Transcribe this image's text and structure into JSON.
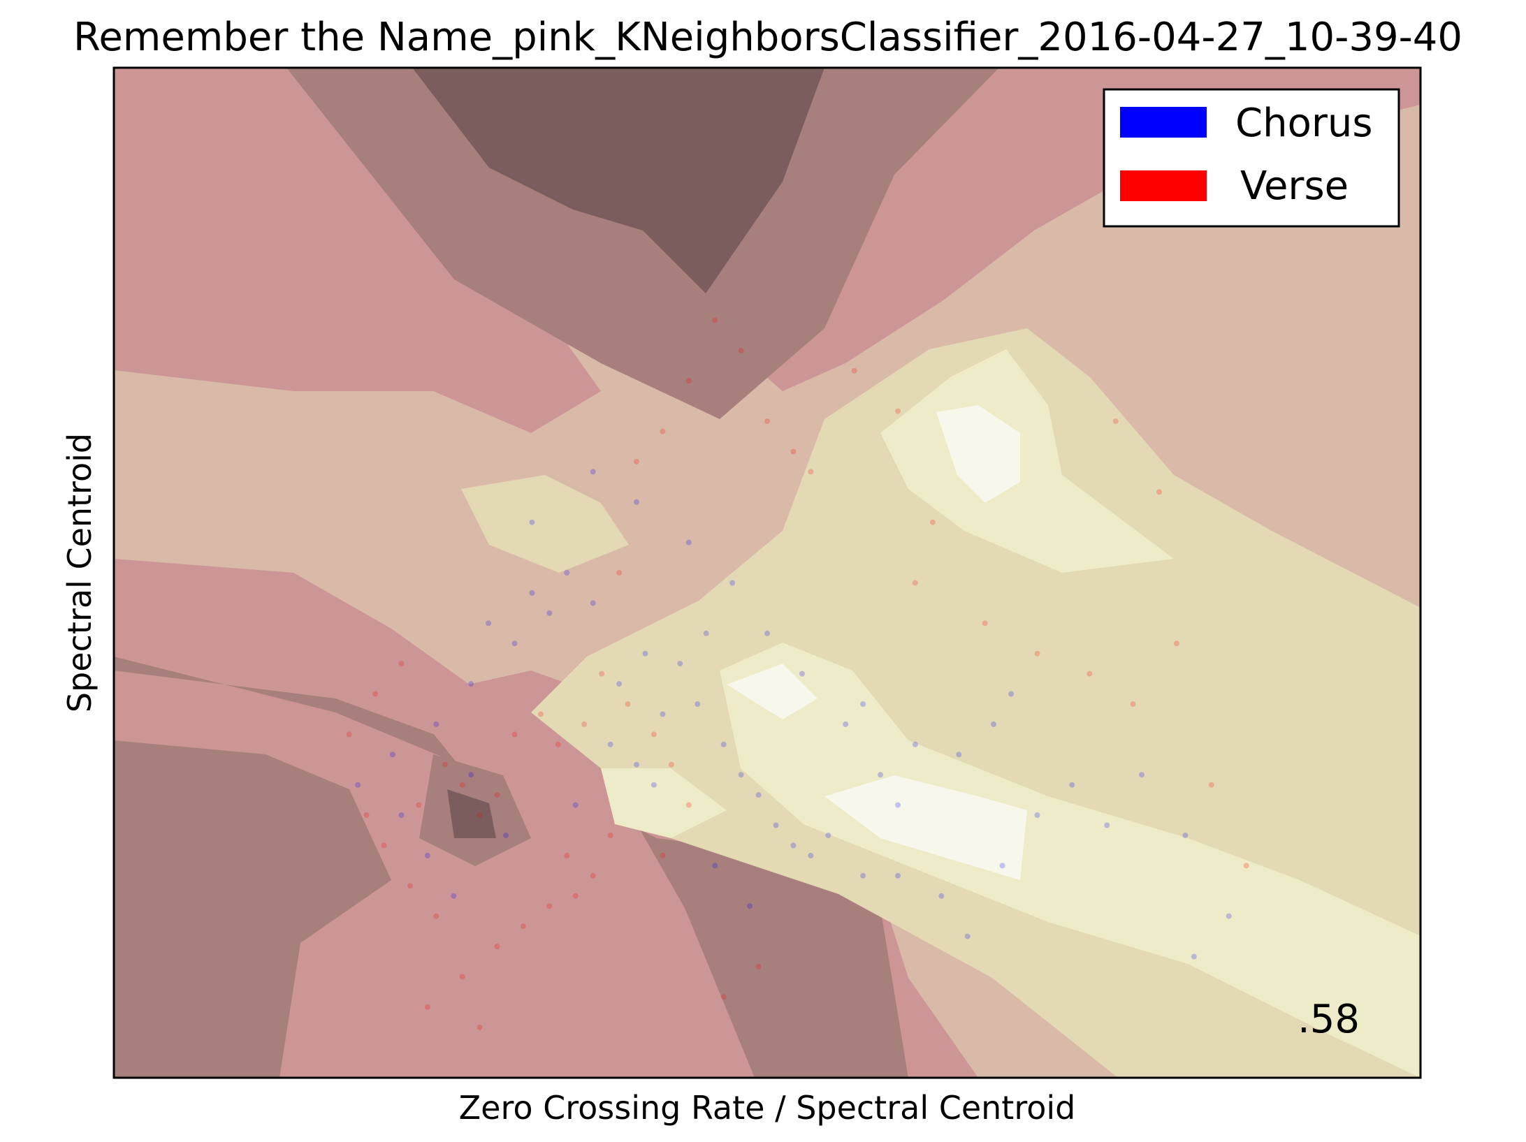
{
  "chart_data": {
    "type": "scatter",
    "title": "Remember the Name_pink_KNeighborsClassifier_2016-04-27_10-39-40",
    "xlabel": "Zero Crossing Rate / Spectral Centroid",
    "ylabel": "Spectral Centroid",
    "xticks": [],
    "yticks": [],
    "grid": false,
    "legend": {
      "placement": "top-right",
      "entries": [
        {
          "label": "Chorus",
          "color": "#0000ff"
        },
        {
          "label": "Verse",
          "color": "#ff0000"
        }
      ]
    },
    "score_label": ".58",
    "background": "decision-surface",
    "decision_surface_colors": [
      "#7b5d5d",
      "#a77f7d",
      "#cc9696",
      "#d9b9a8",
      "#e3dab5",
      "#eeebc8",
      "#f8f7ec"
    ],
    "series": [
      {
        "name": "Chorus",
        "color": "#0000ff",
        "points": [
          [
            0.43,
            0.45
          ],
          [
            0.46,
            0.43
          ],
          [
            0.48,
            0.48
          ],
          [
            0.5,
            0.46
          ],
          [
            0.52,
            0.5
          ],
          [
            0.55,
            0.47
          ],
          [
            0.58,
            0.39
          ],
          [
            0.61,
            0.42
          ],
          [
            0.63,
            0.36
          ],
          [
            0.65,
            0.41
          ],
          [
            0.67,
            0.37
          ],
          [
            0.68,
            0.44
          ],
          [
            0.7,
            0.33
          ],
          [
            0.72,
            0.3
          ],
          [
            0.74,
            0.28
          ],
          [
            0.76,
            0.25
          ],
          [
            0.78,
            0.23
          ],
          [
            0.8,
            0.22
          ],
          [
            0.82,
            0.24
          ],
          [
            0.86,
            0.2
          ],
          [
            0.9,
            0.2
          ],
          [
            0.95,
            0.18
          ],
          [
            1.02,
            0.21
          ],
          [
            1.06,
            0.26
          ],
          [
            1.1,
            0.29
          ],
          [
            1.14,
            0.25
          ],
          [
            1.18,
            0.3
          ],
          [
            1.23,
            0.24
          ],
          [
            1.28,
            0.16
          ],
          [
            1.24,
            0.12
          ],
          [
            0.98,
            0.14
          ],
          [
            1.01,
            0.35
          ],
          [
            1.03,
            0.38
          ],
          [
            0.92,
            0.33
          ],
          [
            0.88,
            0.3
          ],
          [
            0.86,
            0.37
          ],
          [
            0.6,
            0.31
          ],
          [
            0.62,
            0.29
          ],
          [
            0.57,
            0.33
          ],
          [
            0.53,
            0.27
          ],
          [
            0.45,
            0.24
          ],
          [
            0.41,
            0.3
          ],
          [
            0.39,
            0.18
          ],
          [
            0.36,
            0.22
          ],
          [
            0.33,
            0.26
          ],
          [
            0.37,
            0.35
          ],
          [
            0.41,
            0.39
          ],
          [
            0.48,
            0.55
          ],
          [
            0.55,
            0.6
          ],
          [
            0.6,
            0.57
          ],
          [
            0.66,
            0.53
          ],
          [
            0.71,
            0.49
          ],
          [
            0.75,
            0.44
          ],
          [
            0.79,
            0.4
          ],
          [
            0.84,
            0.35
          ],
          [
            0.9,
            0.27
          ],
          [
            0.97,
            0.32
          ],
          [
            0.32,
            0.32
          ],
          [
            0.28,
            0.29
          ],
          [
            0.69,
            0.21
          ],
          [
            0.73,
            0.17
          ]
        ]
      },
      {
        "name": "Verse",
        "color": "#ff0000",
        "points": [
          [
            0.35,
            0.27
          ],
          [
            0.38,
            0.31
          ],
          [
            0.4,
            0.29
          ],
          [
            0.42,
            0.26
          ],
          [
            0.44,
            0.28
          ],
          [
            0.46,
            0.34
          ],
          [
            0.49,
            0.36
          ],
          [
            0.51,
            0.33
          ],
          [
            0.54,
            0.35
          ],
          [
            0.56,
            0.4
          ],
          [
            0.59,
            0.37
          ],
          [
            0.62,
            0.34
          ],
          [
            0.64,
            0.31
          ],
          [
            0.66,
            0.27
          ],
          [
            0.55,
            0.2
          ],
          [
            0.53,
            0.18
          ],
          [
            0.5,
            0.17
          ],
          [
            0.47,
            0.15
          ],
          [
            0.44,
            0.13
          ],
          [
            0.4,
            0.1
          ],
          [
            0.37,
            0.16
          ],
          [
            0.34,
            0.19
          ],
          [
            0.31,
            0.23
          ],
          [
            0.29,
            0.26
          ],
          [
            0.27,
            0.34
          ],
          [
            0.3,
            0.38
          ],
          [
            0.33,
            0.41
          ],
          [
            0.58,
            0.5
          ],
          [
            0.6,
            0.61
          ],
          [
            0.63,
            0.64
          ],
          [
            0.66,
            0.69
          ],
          [
            0.69,
            0.75
          ],
          [
            0.72,
            0.72
          ],
          [
            0.75,
            0.65
          ],
          [
            0.78,
            0.62
          ],
          [
            0.8,
            0.6
          ],
          [
            0.85,
            0.7
          ],
          [
            0.9,
            0.66
          ],
          [
            0.94,
            0.55
          ],
          [
            1.0,
            0.45
          ],
          [
            1.06,
            0.42
          ],
          [
            1.12,
            0.4
          ],
          [
            1.17,
            0.37
          ],
          [
            1.22,
            0.43
          ],
          [
            1.26,
            0.29
          ],
          [
            1.3,
            0.21
          ],
          [
            1.2,
            0.58
          ],
          [
            1.15,
            0.65
          ],
          [
            0.92,
            0.49
          ],
          [
            0.74,
            0.11
          ],
          [
            0.7,
            0.08
          ],
          [
            0.36,
            0.07
          ],
          [
            0.42,
            0.05
          ],
          [
            0.52,
            0.22
          ],
          [
            0.57,
            0.24
          ],
          [
            0.63,
            0.22
          ]
        ]
      }
    ]
  }
}
